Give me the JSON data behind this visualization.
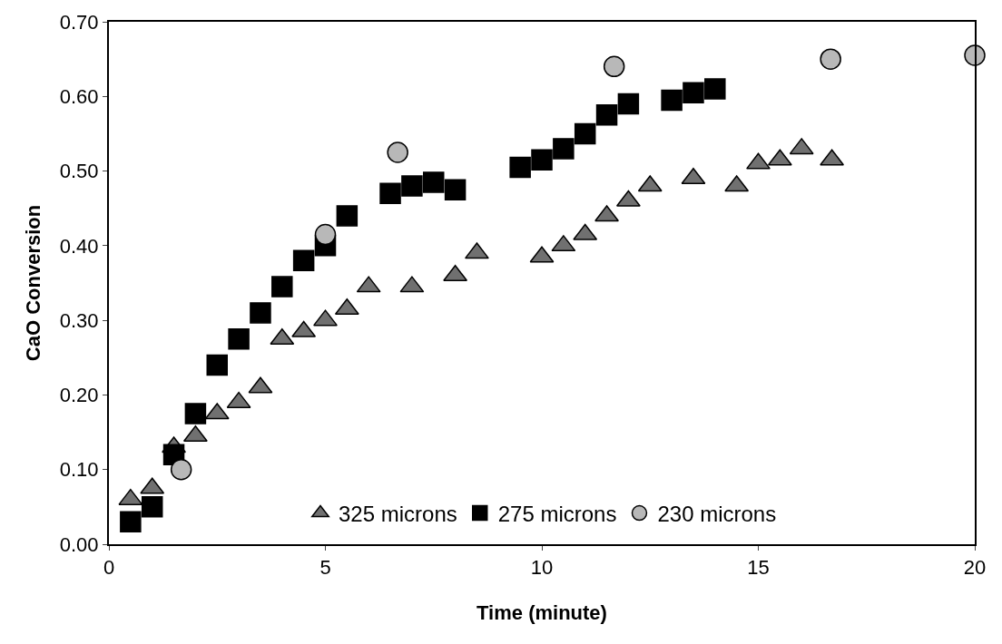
{
  "chart_data": {
    "type": "scatter",
    "xlabel": "Time (minute)",
    "ylabel": "CaO Conversion",
    "xlim": [
      0,
      20
    ],
    "xticks": [
      0,
      5,
      10,
      15,
      20
    ],
    "ylim": [
      0,
      0.7
    ],
    "yticks": [
      {
        "value": 0,
        "label": "0.00"
      },
      {
        "value": 0.1,
        "label": "0.10"
      },
      {
        "value": 0.2,
        "label": "0.20"
      },
      {
        "value": 0.3,
        "label": "0.30"
      },
      {
        "value": 0.4,
        "label": "0.40"
      },
      {
        "value": 0.5,
        "label": "0.50"
      },
      {
        "value": 0.6,
        "label": "0.60"
      },
      {
        "value": 0.7,
        "label": "0.70"
      }
    ],
    "legend": "bottom",
    "series": [
      {
        "name": "325 microns",
        "color": "#707070",
        "marker": "triangle",
        "x": [
          0.5,
          1,
          1.5,
          2,
          2.5,
          3,
          3.5,
          4,
          4.5,
          5,
          5.5,
          6,
          7,
          8,
          8.5,
          10,
          10.5,
          11,
          11.5,
          12,
          12.5,
          13.5,
          14.5,
          15,
          15.5,
          16,
          16.7
        ],
        "values": [
          0.06,
          0.075,
          0.13,
          0.145,
          0.175,
          0.19,
          0.21,
          0.275,
          0.285,
          0.3,
          0.315,
          0.345,
          0.345,
          0.36,
          0.39,
          0.385,
          0.4,
          0.415,
          0.44,
          0.46,
          0.48,
          0.49,
          0.48,
          0.51,
          0.515,
          0.53,
          0.515
        ]
      },
      {
        "name": "275 microns",
        "color": "#000000",
        "marker": "square",
        "x": [
          0.5,
          1,
          1.5,
          2,
          2.5,
          3,
          3.5,
          4,
          4.5,
          5,
          5.5,
          6.5,
          7,
          7.5,
          8,
          9.5,
          10,
          10.5,
          11,
          11.5,
          12,
          13,
          13.5,
          14
        ],
        "values": [
          0.03,
          0.05,
          0.12,
          0.175,
          0.24,
          0.275,
          0.31,
          0.345,
          0.38,
          0.4,
          0.44,
          0.47,
          0.48,
          0.485,
          0.475,
          0.505,
          0.515,
          0.53,
          0.55,
          0.575,
          0.59,
          0.595,
          0.605,
          0.61
        ]
      },
      {
        "name": "230 microns",
        "color": "#b8b8b8",
        "marker": "circle",
        "x": [
          1.67,
          5,
          6.67,
          11.67,
          16.67,
          20
        ],
        "values": [
          0.1,
          0.415,
          0.525,
          0.64,
          0.65,
          0.655
        ]
      }
    ]
  }
}
